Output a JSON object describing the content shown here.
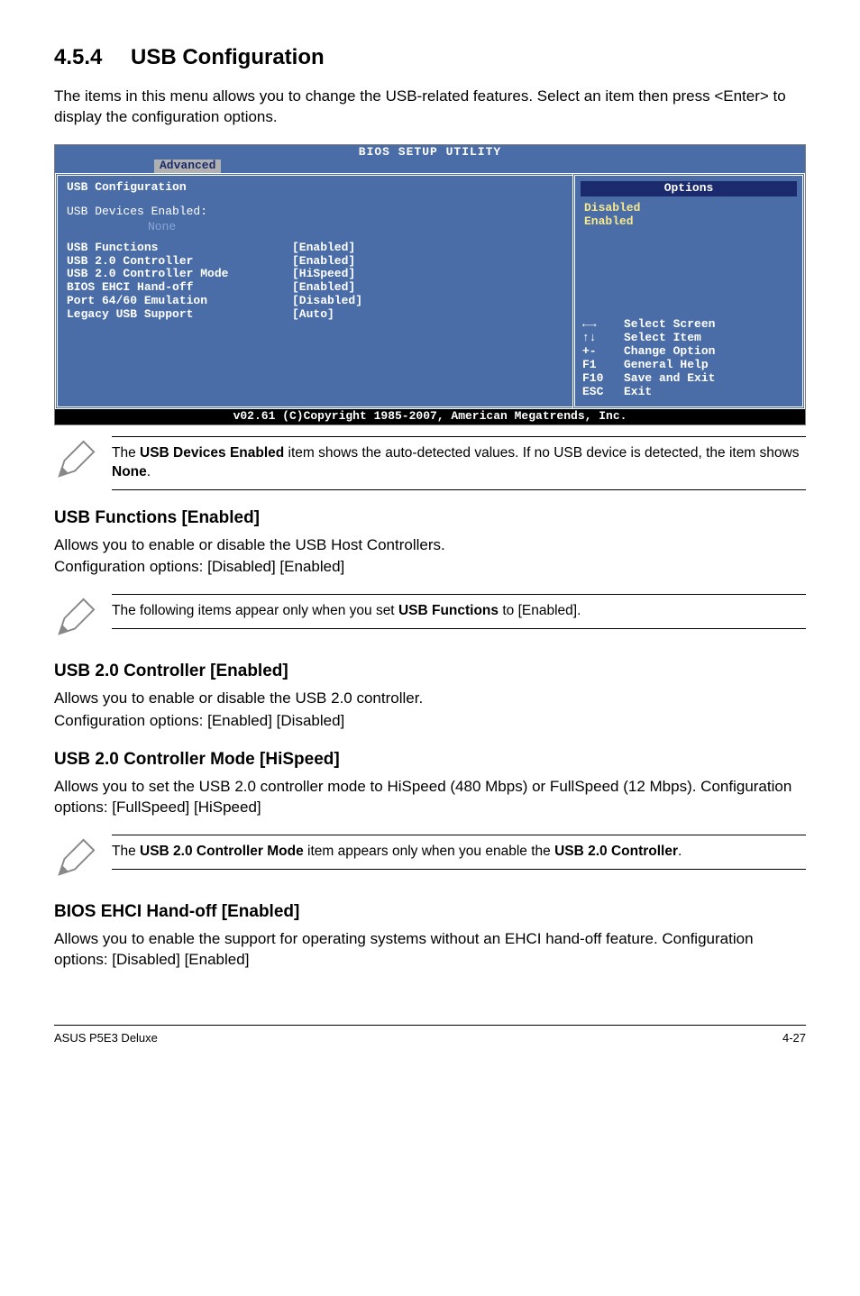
{
  "section": {
    "number": "4.5.4",
    "title": "USB Configuration"
  },
  "intro": "The items in this menu allows you to change the USB-related features. Select an item then press <Enter> to display the configuration options.",
  "bios": {
    "titlebar": "BIOS SETUP UTILITY",
    "tab": "Advanced",
    "left": {
      "heading": "USB Configuration",
      "devices_label": "USB Devices Enabled:",
      "devices_value": "None",
      "rows": [
        {
          "k": "USB Functions",
          "v": "[Enabled]"
        },
        {
          "k": "USB 2.0 Controller",
          "v": "[Enabled]"
        },
        {
          "k": "USB 2.0 Controller Mode",
          "v": "[HiSpeed]"
        },
        {
          "k": "BIOS EHCI Hand-off",
          "v": "[Enabled]"
        },
        {
          "k": "Port 64/60 Emulation",
          "v": "[Disabled]"
        },
        {
          "k": "Legacy USB Support",
          "v": "[Auto]"
        }
      ]
    },
    "right": {
      "options_title": "Options",
      "options": [
        "Disabled",
        "Enabled"
      ],
      "help": [
        {
          "key": "←→",
          "label": "Select Screen"
        },
        {
          "key": "↑↓",
          "label": "Select Item"
        },
        {
          "key": "+-",
          "label": "Change Option"
        },
        {
          "key": "F1",
          "label": "General Help"
        },
        {
          "key": "F10",
          "label": "Save and Exit"
        },
        {
          "key": "ESC",
          "label": "Exit"
        }
      ]
    },
    "footer": "v02.61 (C)Copyright 1985-2007, American Megatrends, Inc."
  },
  "note1_pre": "The ",
  "note1_b1": "USB Devices Enabled",
  "note1_mid": " item shows the auto-detected values. If no USB device is detected, the item shows ",
  "note1_b2": "None",
  "note1_post": ".",
  "usb_functions": {
    "heading": "USB Functions [Enabled]",
    "p1": "Allows you to enable or disable the USB Host Controllers.",
    "p2": "Configuration options: [Disabled] [Enabled]"
  },
  "note2_pre": "The following items appear only when you set ",
  "note2_b": "USB Functions",
  "note2_post": " to [Enabled].",
  "usb20ctrl": {
    "heading": "USB 2.0 Controller [Enabled]",
    "p1": "Allows you to enable or disable the USB 2.0 controller.",
    "p2": "Configuration options: [Enabled] [Disabled]"
  },
  "usb20mode": {
    "heading": "USB 2.0 Controller Mode [HiSpeed]",
    "p": "Allows you to set the USB 2.0 controller mode to HiSpeed (480 Mbps) or FullSpeed (12 Mbps). Configuration options: [FullSpeed] [HiSpeed]"
  },
  "note3_pre": "The ",
  "note3_b1": "USB 2.0 Controller Mode",
  "note3_mid": " item appears only when you enable the ",
  "note3_b2": "USB 2.0 Controller",
  "note3_post": ".",
  "ehci": {
    "heading": "BIOS EHCI Hand-off [Enabled]",
    "p": "Allows you to enable the support for operating systems without an EHCI hand-off feature. Configuration options: [Disabled] [Enabled]"
  },
  "footer": {
    "left": "ASUS P5E3 Deluxe",
    "right": "4-27"
  }
}
